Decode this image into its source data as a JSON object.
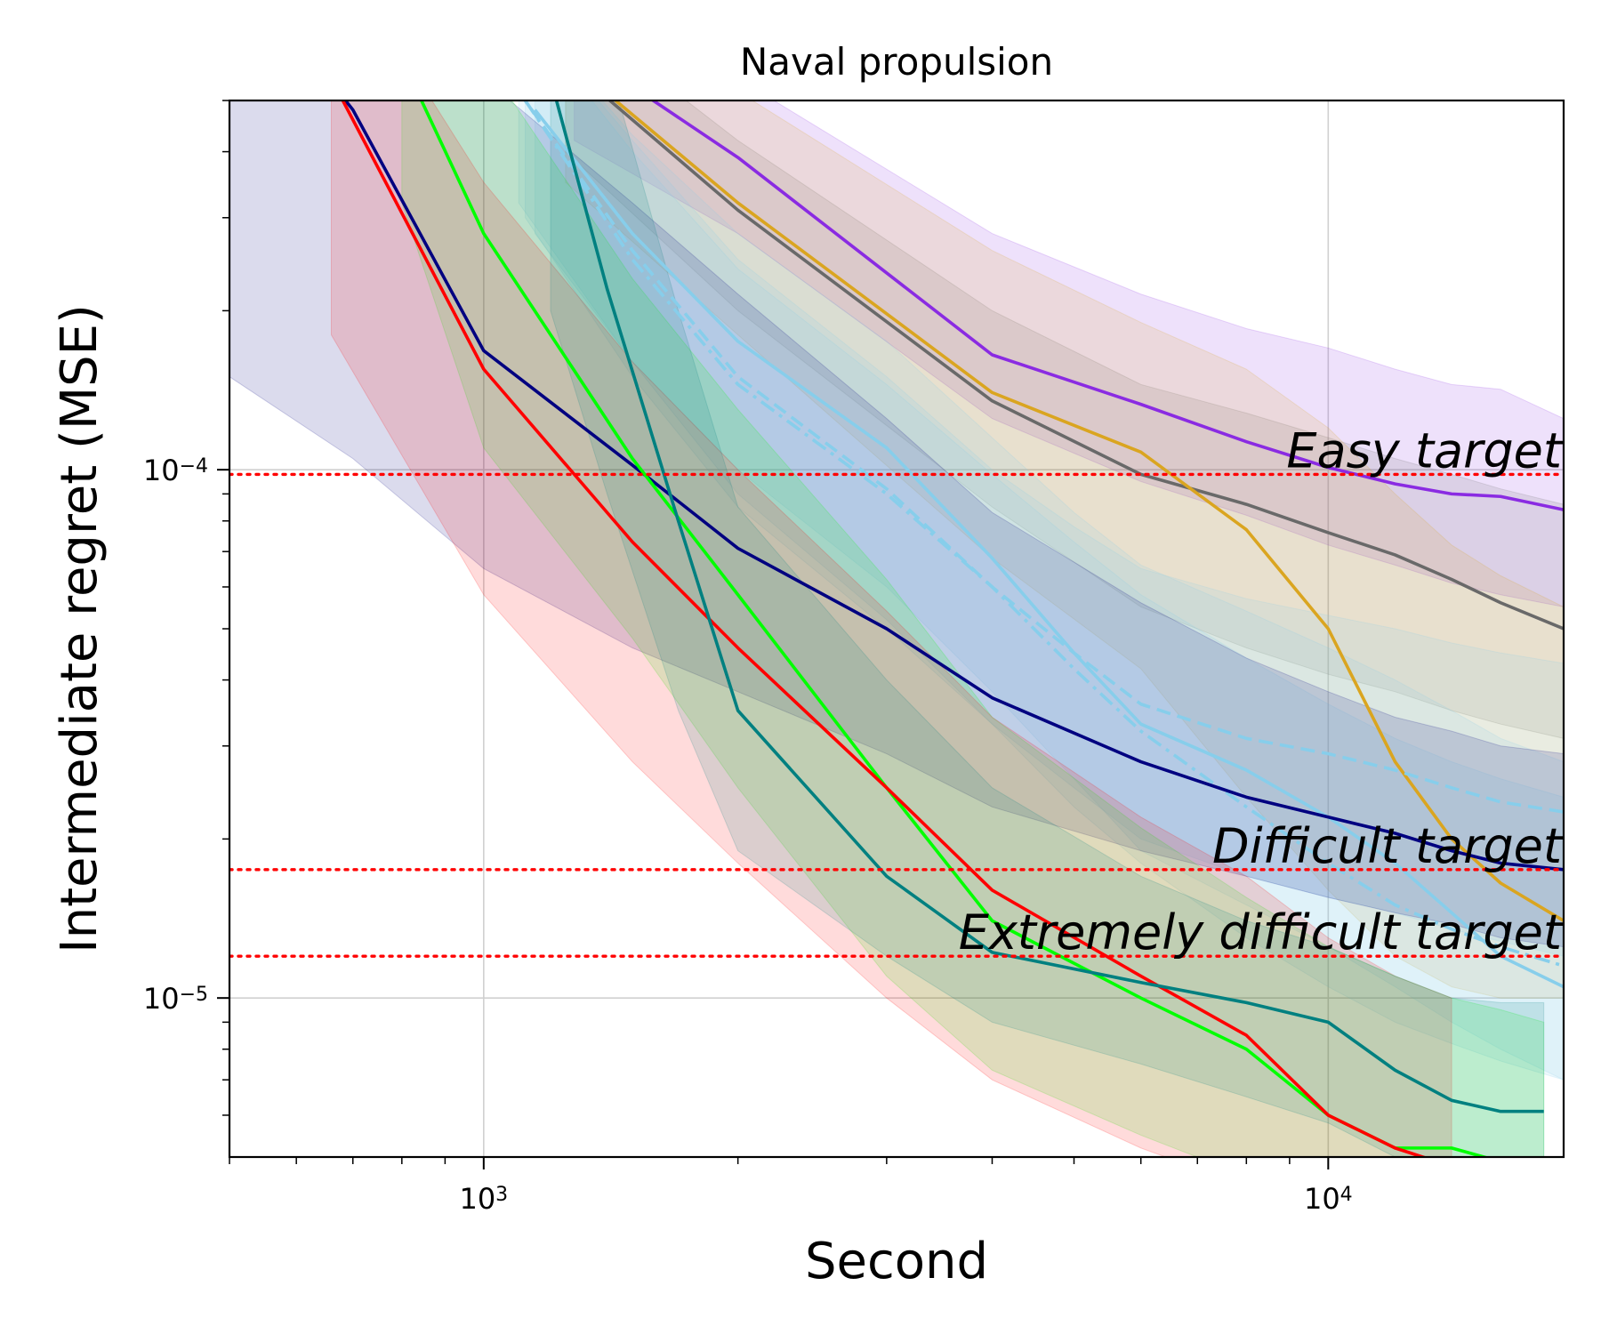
{
  "chart_data": {
    "type": "line",
    "title": "Naval propulsion",
    "xlabel": "Second",
    "ylabel": "Intermediate regret (MSE)",
    "xscale": "log",
    "yscale": "log",
    "xlim": [
      500,
      19000
    ],
    "ylim": [
      5e-06,
      0.0005
    ],
    "x_ticks": [
      {
        "value": 1000,
        "base": "10",
        "exp": "3"
      },
      {
        "value": 10000,
        "base": "10",
        "exp": "4"
      }
    ],
    "y_ticks": [
      {
        "value": 0.0001,
        "base": "10",
        "exp": "−4"
      },
      {
        "value": 1e-05,
        "base": "10",
        "exp": "−5"
      }
    ],
    "grid": true,
    "targets": [
      {
        "name": "easy",
        "label": "Easy target",
        "value": 9.8e-05,
        "color": "#ff0000"
      },
      {
        "name": "difficult",
        "label": "Difficult target",
        "value": 1.75e-05,
        "color": "#ff0000"
      },
      {
        "name": "extremely-difficult",
        "label": "Extremely difficult target",
        "value": 1.2e-05,
        "color": "#ff0000"
      }
    ],
    "series": [
      {
        "name": "purple",
        "color": "#8a2be2",
        "dash": "solid",
        "x": [
          1280,
          2000,
          4000,
          6000,
          8000,
          10000,
          12000,
          14000,
          16000,
          19000
        ],
        "y": [
          0.00063,
          0.00039,
          0.000165,
          0.000133,
          0.000113,
          0.000101,
          9.4e-05,
          9e-05,
          8.9e-05,
          8.4e-05
        ],
        "band_lo": [
          0.00042,
          0.00028,
          0.000125,
          9.5e-05,
          8.2e-05,
          7.2e-05,
          6.6e-05,
          6.1e-05,
          5.8e-05,
          5.5e-05
        ],
        "band_hi": [
          0.00085,
          0.00055,
          0.00028,
          0.000215,
          0.000185,
          0.00017,
          0.000155,
          0.000145,
          0.000142,
          0.000125
        ]
      },
      {
        "name": "gray",
        "color": "#696969",
        "dash": "solid",
        "x": [
          1250,
          2000,
          4000,
          6000,
          8000,
          10000,
          12000,
          14000,
          16000,
          19000
        ],
        "y": [
          0.00059,
          0.00031,
          0.000135,
          9.8e-05,
          8.6e-05,
          7.6e-05,
          6.9e-05,
          6.2e-05,
          5.6e-05,
          5e-05
        ],
        "band_lo": [
          0.0004,
          0.0002,
          8.5e-05,
          5.5e-05,
          4.6e-05,
          4.1e-05,
          3.8e-05,
          3.5e-05,
          3.3e-05,
          3.1e-05
        ],
        "band_hi": [
          0.00075,
          0.00042,
          0.0002,
          0.000145,
          0.000128,
          0.000115,
          0.000105,
          9.8e-05,
          9.2e-05,
          8.6e-05
        ]
      },
      {
        "name": "orange",
        "color": "#daa520",
        "dash": "solid",
        "x": [
          1250,
          2000,
          4000,
          6000,
          8000,
          10000,
          12000,
          14000,
          16000,
          19000
        ],
        "y": [
          0.0006,
          0.00032,
          0.00014,
          0.000108,
          7.7e-05,
          5e-05,
          2.8e-05,
          2e-05,
          1.65e-05,
          1.4e-05
        ],
        "band_lo": [
          0.00035,
          0.00018,
          6.8e-05,
          4.2e-05,
          2.4e-05,
          1.6e-05,
          1.2e-05,
          1.05e-05,
          1e-05,
          1e-05
        ],
        "band_hi": [
          0.00085,
          0.00052,
          0.00026,
          0.00019,
          0.000155,
          0.00012,
          9e-05,
          7.2e-05,
          6.3e-05,
          5.5e-05
        ]
      },
      {
        "name": "skyblue-dashed",
        "color": "#87ceeb",
        "dash": "dashed",
        "x": [
          1100,
          1500,
          2000,
          3000,
          4000,
          5000,
          6000,
          8000,
          10000,
          12000,
          14000,
          16000,
          19000
        ],
        "y": [
          0.00052,
          0.00026,
          0.00015,
          9.2e-05,
          6e-05,
          4.5e-05,
          3.6e-05,
          3.1e-05,
          2.9e-05,
          2.7e-05,
          2.5e-05,
          2.35e-05,
          2.25e-05
        ],
        "band_lo": [
          0.00032,
          0.00016,
          9e-05,
          5.2e-05,
          3.3e-05,
          2.5e-05,
          2e-05,
          1.7e-05,
          1.55e-05,
          1.45e-05,
          1.35e-05,
          1.28e-05,
          1.2e-05
        ],
        "band_hi": [
          0.00075,
          0.00042,
          0.00025,
          0.00015,
          0.0001,
          7.8e-05,
          6.5e-05,
          5.7e-05,
          5.3e-05,
          5e-05,
          4.7e-05,
          4.5e-05,
          4.3e-05
        ]
      },
      {
        "name": "skyblue-dashdot",
        "color": "#87ceeb",
        "dash": "dashdot",
        "x": [
          1120,
          1500,
          2000,
          3000,
          4000,
          5000,
          6000,
          8000,
          10000,
          12000,
          14000,
          16000,
          19000
        ],
        "y": [
          0.0005,
          0.00025,
          0.000145,
          9e-05,
          6e-05,
          4.2e-05,
          3.2e-05,
          2.3e-05,
          1.8e-05,
          1.5e-05,
          1.35e-05,
          1.25e-05,
          1.15e-05
        ],
        "band_lo": [
          0.0003,
          0.00015,
          8.5e-05,
          5e-05,
          3.3e-05,
          2.3e-05,
          1.8e-05,
          1.3e-05,
          1.05e-05,
          9e-06,
          8.2e-06,
          7.6e-06,
          7e-06
        ],
        "band_hi": [
          0.00072,
          0.0004,
          0.00024,
          0.000145,
          9.8e-05,
          7.3e-05,
          5.8e-05,
          4.4e-05,
          3.6e-05,
          3.1e-05,
          2.8e-05,
          2.6e-05,
          2.4e-05
        ]
      },
      {
        "name": "skyblue-solid",
        "color": "#87ceeb",
        "dash": "solid",
        "x": [
          1150,
          1500,
          2000,
          3000,
          4000,
          5000,
          6000,
          8000,
          10000,
          12000,
          14000,
          16000,
          19000
        ],
        "y": [
          0.00048,
          0.00028,
          0.000175,
          0.00011,
          6.8e-05,
          4.5e-05,
          3.3e-05,
          2.7e-05,
          2.2e-05,
          1.8e-05,
          1.45e-05,
          1.2e-05,
          1.05e-05
        ],
        "band_lo": [
          0.00028,
          0.00016,
          0.0001,
          6e-05,
          3.8e-05,
          2.6e-05,
          1.9e-05,
          1.5e-05,
          1.25e-05,
          1.05e-05,
          9e-06,
          8e-06,
          7e-06
        ],
        "band_hi": [
          0.0007,
          0.00043,
          0.00028,
          0.000175,
          0.000115,
          8.3e-05,
          6.6e-05,
          5.4e-05,
          4.6e-05,
          4e-05,
          3.5e-05,
          3.1e-05,
          2.8e-05
        ]
      },
      {
        "name": "navy",
        "color": "#000080",
        "dash": "solid",
        "x": [
          500,
          700,
          1000,
          1500,
          2000,
          3000,
          4000,
          6000,
          8000,
          10000,
          12000,
          14000,
          16000,
          19000
        ],
        "y": [
          0.00095,
          0.00048,
          0.000168,
          0.000102,
          7.1e-05,
          5e-05,
          3.7e-05,
          2.8e-05,
          2.4e-05,
          2.2e-05,
          2.05e-05,
          1.9e-05,
          1.8e-05,
          1.75e-05
        ],
        "band_lo": [
          0.00015,
          0.000105,
          6.5e-05,
          4.6e-05,
          3.8e-05,
          2.9e-05,
          2.3e-05,
          1.9e-05,
          1.7e-05,
          1.55e-05,
          1.45e-05,
          1.38e-05,
          1.3e-05,
          1.25e-05
        ],
        "band_hi": [
          0.0025,
          0.0012,
          0.00055,
          0.00032,
          0.000215,
          0.000125,
          8.3e-05,
          5.6e-05,
          4.4e-05,
          3.8e-05,
          3.4e-05,
          3.2e-05,
          3e-05,
          2.9e-05
        ]
      },
      {
        "name": "lime",
        "color": "#00ff00",
        "dash": "solid",
        "x": [
          800,
          1000,
          1500,
          2000,
          3000,
          4000,
          6000,
          8000,
          10000,
          12000,
          14000,
          16000,
          18000
        ],
        "y": [
          0.0006,
          0.00028,
          0.000105,
          5.8e-05,
          2.5e-05,
          1.4e-05,
          1e-05,
          8e-06,
          6e-06,
          5.2e-06,
          5.2e-06,
          4.9e-06,
          4.7e-06
        ],
        "band_lo": [
          0.00032,
          0.00011,
          4.8e-05,
          2.5e-05,
          1.1e-05,
          7.3e-06,
          5.5e-06,
          4.6e-06,
          4e-06,
          3.8e-06,
          3.7e-06,
          3.6e-06,
          3.5e-06
        ],
        "band_hi": [
          0.0012,
          0.0006,
          0.00023,
          0.00013,
          6.2e-05,
          3.4e-05,
          2.1e-05,
          1.55e-05,
          1.25e-05,
          1.1e-05,
          1e-05,
          9.5e-06,
          9e-06
        ]
      },
      {
        "name": "red",
        "color": "#ff0000",
        "dash": "solid",
        "x": [
          660,
          1000,
          1500,
          2000,
          3000,
          4000,
          6000,
          8000,
          10000,
          12000,
          14000
        ],
        "y": [
          0.00055,
          0.000155,
          7.3e-05,
          4.6e-05,
          2.5e-05,
          1.6e-05,
          1.1e-05,
          8.5e-06,
          6e-06,
          5.2e-06,
          4.8e-06
        ],
        "band_lo": [
          0.00018,
          5.8e-05,
          2.8e-05,
          1.8e-05,
          1e-05,
          7e-06,
          5.2e-06,
          4.4e-06,
          3.9e-06,
          3.6e-06,
          3.5e-06
        ],
        "band_hi": [
          0.001,
          0.00035,
          0.00016,
          0.0001,
          5.4e-05,
          3.4e-05,
          2.2e-05,
          1.7e-05,
          1.3e-05,
          1.1e-05,
          1e-05
        ]
      },
      {
        "name": "teal",
        "color": "#008080",
        "dash": "solid",
        "x": [
          1200,
          1400,
          1700,
          2000,
          3000,
          4000,
          6000,
          8000,
          10000,
          12000,
          14000,
          16000,
          18000
        ],
        "y": [
          0.00055,
          0.00022,
          8e-05,
          3.5e-05,
          1.7e-05,
          1.22e-05,
          1.07e-05,
          9.8e-06,
          9e-06,
          7.3e-06,
          6.4e-06,
          6.1e-06,
          6.1e-06
        ],
        "band_lo": [
          0.0002,
          9e-05,
          3.5e-05,
          1.9e-05,
          1.2e-05,
          9e-06,
          7.5e-06,
          6.5e-06,
          5.8e-06,
          5e-06,
          4.7e-06,
          4.5e-06,
          4.5e-06
        ],
        "band_hi": [
          0.0012,
          0.0006,
          0.0002,
          8.5e-05,
          4e-05,
          2.5e-05,
          1.7e-05,
          1.4e-05,
          1.25e-05,
          1.1e-05,
          1e-05,
          9.8e-06,
          9.8e-06
        ]
      }
    ]
  }
}
